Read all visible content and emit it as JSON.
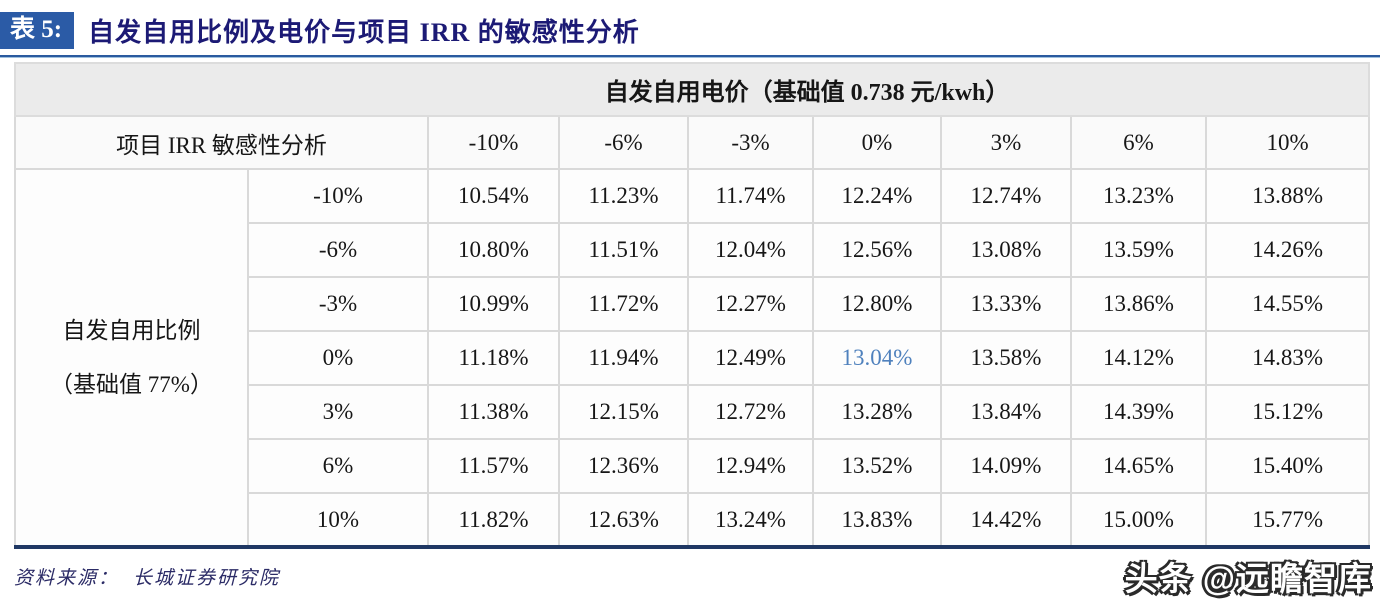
{
  "page": {
    "table_label": "表 5:",
    "title": "自发自用比例及电价与项目 IRR 的敏感性分析",
    "source_label": "资料来源：",
    "source_text": "长城证券研究院",
    "watermark": "头条 @远瞻智库"
  },
  "table": {
    "top_header": "自发自用电价（基础值 0.738 元/kwh）",
    "corner_header": "项目 IRR 敏感性分析",
    "col_headers": [
      "-10%",
      "-6%",
      "-3%",
      "0%",
      "3%",
      "6%",
      "10%"
    ],
    "row_group_label_line1": "自发自用比例",
    "row_group_label_line2": "（基础值 77%）",
    "rows": [
      {
        "label": "-10%",
        "values": [
          "10.54%",
          "11.23%",
          "11.74%",
          "12.24%",
          "12.74%",
          "13.23%",
          "13.88%"
        ]
      },
      {
        "label": "-6%",
        "values": [
          "10.80%",
          "11.51%",
          "12.04%",
          "12.56%",
          "13.08%",
          "13.59%",
          "14.26%"
        ]
      },
      {
        "label": "-3%",
        "values": [
          "10.99%",
          "11.72%",
          "12.27%",
          "12.80%",
          "13.33%",
          "13.86%",
          "14.55%"
        ]
      },
      {
        "label": "0%",
        "values": [
          "11.18%",
          "11.94%",
          "12.49%",
          "13.04%",
          "13.58%",
          "14.12%",
          "14.83%"
        ]
      },
      {
        "label": "3%",
        "values": [
          "11.38%",
          "12.15%",
          "12.72%",
          "13.28%",
          "13.84%",
          "14.39%",
          "15.12%"
        ]
      },
      {
        "label": "6%",
        "values": [
          "11.57%",
          "12.36%",
          "12.94%",
          "13.52%",
          "14.09%",
          "14.65%",
          "15.40%"
        ]
      },
      {
        "label": "10%",
        "values": [
          "11.82%",
          "12.63%",
          "13.24%",
          "13.83%",
          "14.42%",
          "15.00%",
          "15.77%"
        ]
      }
    ],
    "highlight": {
      "row": 3,
      "col": 3,
      "value": "13.04%",
      "color": "#4f81bd"
    }
  },
  "colors": {
    "title_box_bg": "#2b5ba6",
    "title_text": "#1c1a75",
    "rule_blue": "#2a5a9f",
    "header_bg": "#ebebeb",
    "cell_border": "#d9d9d9",
    "bottom_border": "#203864",
    "highlight_value": "#4f81bd",
    "source_text": "#2b2b66"
  }
}
